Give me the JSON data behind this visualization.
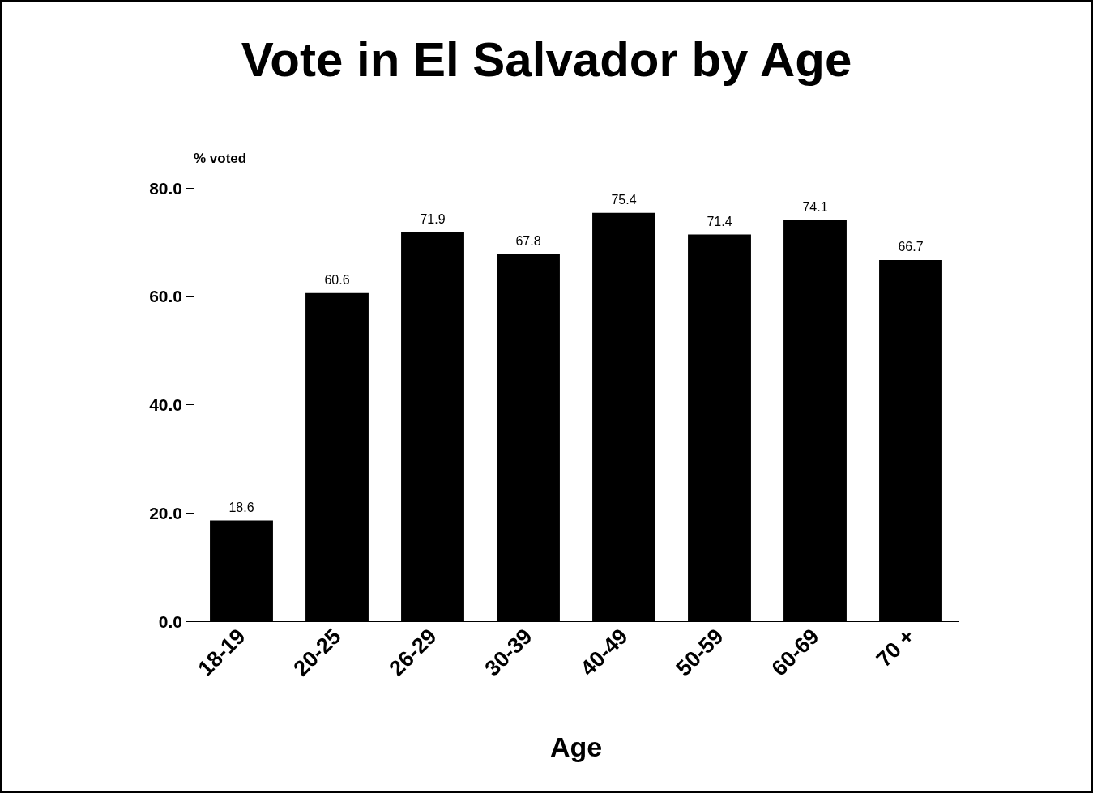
{
  "chart_data": {
    "type": "bar",
    "title": "Vote in El Salvador by Age",
    "xlabel": "Age",
    "ylabel": "% voted",
    "categories": [
      "18-19",
      "20-25",
      "26-29",
      "30-39",
      "40-49",
      "50-59",
      "60-69",
      "70 +"
    ],
    "values": [
      18.6,
      60.6,
      71.9,
      67.8,
      75.4,
      71.4,
      74.1,
      66.7
    ],
    "color": "#000000",
    "data_labels": true,
    "grid": false,
    "ylim": [
      0,
      80
    ],
    "yticks": [
      {
        "value": 0,
        "label": "0.0"
      },
      {
        "value": 20,
        "label": "20.0"
      },
      {
        "value": 40,
        "label": "40.0"
      },
      {
        "value": 60,
        "label": "60.0"
      },
      {
        "value": 80,
        "label": "80.0"
      }
    ]
  }
}
